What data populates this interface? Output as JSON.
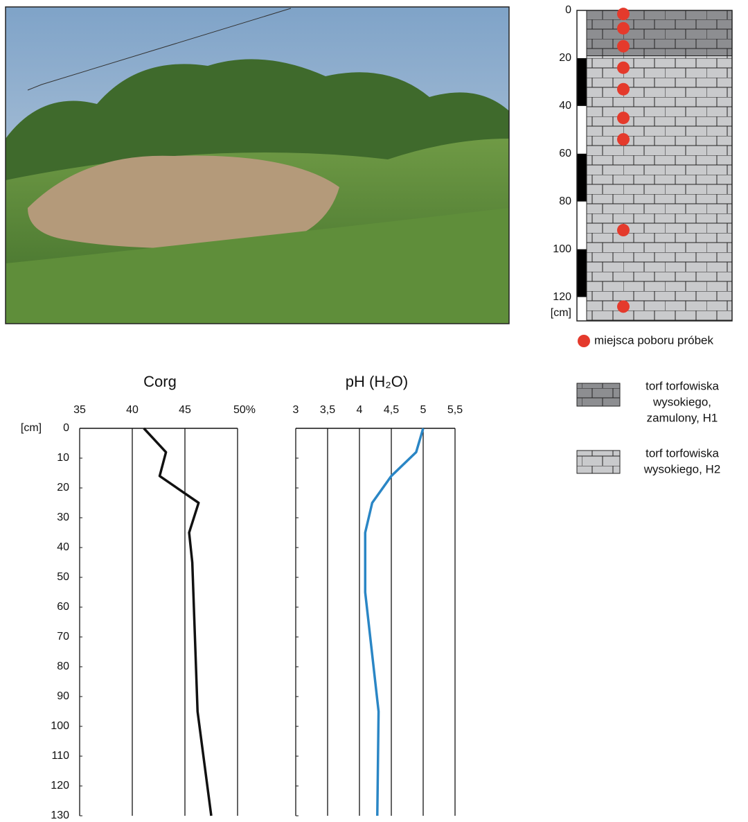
{
  "chart_data": [
    {
      "type": "profile",
      "ylabel": "[cm]",
      "ylim": [
        0,
        130
      ],
      "yticks": [
        0,
        20,
        40,
        60,
        80,
        100,
        120
      ],
      "layers": [
        {
          "label": [
            "torf torfowiska",
            "wysokiego,",
            "zamulony, H1"
          ],
          "top": 0,
          "bottom": 19,
          "color": "#8d8e91"
        },
        {
          "label": [
            "torf torfowiska",
            "wysokiego, H2"
          ],
          "top": 19,
          "bottom": 130,
          "color": "#c9cacc"
        }
      ],
      "samples": {
        "name": "miejsca poboru próbek",
        "color": "#e43a2c",
        "depths": [
          1.5,
          7.5,
          15,
          24,
          33,
          45,
          54,
          92,
          124
        ]
      }
    },
    {
      "type": "line",
      "title": "Corg",
      "ylabel": "[cm]",
      "ylim": [
        0,
        130
      ],
      "yticks": [
        0,
        10,
        20,
        30,
        40,
        50,
        60,
        70,
        80,
        90,
        100,
        110,
        120,
        130
      ],
      "xlim": [
        35,
        50
      ],
      "xticks": [
        35,
        40,
        45,
        {
          "value": 50,
          "label": "50%"
        }
      ],
      "depths": [
        0,
        8,
        16,
        25,
        35,
        45,
        55,
        95,
        130
      ],
      "series": [
        {
          "color": "#111111",
          "values": [
            41.1,
            43.2,
            42.6,
            46.3,
            45.4,
            45.7,
            45.8,
            46.2,
            47.5
          ]
        }
      ]
    },
    {
      "type": "line",
      "title": "pH (H₂O)",
      "ylim": [
        0,
        130
      ],
      "yticks": [
        0,
        10,
        20,
        30,
        40,
        50,
        60,
        70,
        80,
        90,
        100,
        110,
        120,
        130
      ],
      "xlim": [
        3,
        5.5
      ],
      "xticks": [
        3,
        {
          "value": 3.5,
          "label": "3,5"
        },
        4,
        {
          "value": 4.5,
          "label": "4,5"
        },
        5,
        {
          "value": 5.5,
          "label": "5,5"
        }
      ],
      "depths": [
        0,
        8,
        16,
        25,
        35,
        45,
        55,
        95,
        130
      ],
      "series": [
        {
          "color": "#2a86c5",
          "values": [
            5.0,
            4.89,
            4.5,
            4.2,
            4.09,
            4.09,
            4.09,
            4.3,
            4.28
          ]
        }
      ]
    }
  ]
}
